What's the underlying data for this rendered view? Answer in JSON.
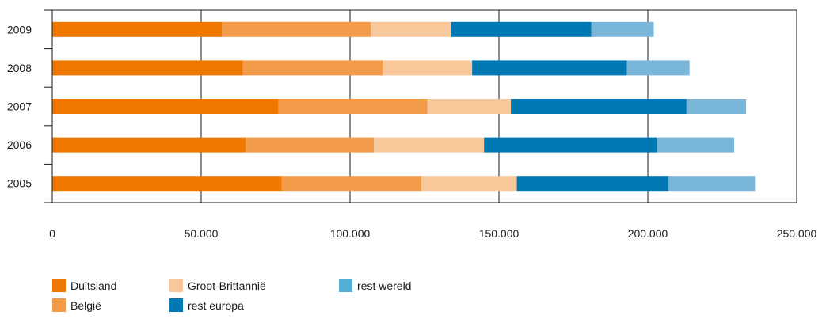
{
  "chart_data": {
    "type": "bar",
    "orientation": "horizontal",
    "stacked": true,
    "title": "",
    "xlabel": "",
    "ylabel": "",
    "categories": [
      "2009",
      "2008",
      "2007",
      "2006",
      "2005"
    ],
    "series": [
      {
        "name": "Duitsland",
        "color": "#f07800",
        "values": [
          57000,
          64000,
          76000,
          65000,
          77000
        ]
      },
      {
        "name": "België",
        "color": "#f39b48",
        "values": [
          50000,
          47000,
          50000,
          43000,
          47000
        ]
      },
      {
        "name": "Groot-Brittannië",
        "color": "#f8c89a",
        "values": [
          27000,
          30000,
          28000,
          37000,
          32000
        ]
      },
      {
        "name": "rest europa",
        "color": "#0078b4",
        "values": [
          47000,
          52000,
          59000,
          58000,
          51000
        ]
      },
      {
        "name": "rest wereld",
        "color": "#7ab5da",
        "values": [
          21000,
          21000,
          20000,
          26000,
          29000
        ]
      }
    ],
    "xlim": [
      0,
      250000
    ],
    "xticks": [
      0,
      50000,
      100000,
      150000,
      200000,
      250000
    ],
    "xtick_labels": [
      "0",
      "50.000",
      "100.000",
      "150.000",
      "200.000",
      "250.000"
    ],
    "grid": "vertical",
    "legend_position": "bottom-left"
  },
  "legend": {
    "items": [
      {
        "label": "Duitsland",
        "color": "#f07800"
      },
      {
        "label": "België",
        "color": "#f39b48"
      },
      {
        "label": "Groot-Brittannië",
        "color": "#f8c89a"
      },
      {
        "label": "rest europa",
        "color": "#0078b4"
      },
      {
        "label": "rest wereld",
        "color": "#55aed3"
      }
    ]
  }
}
